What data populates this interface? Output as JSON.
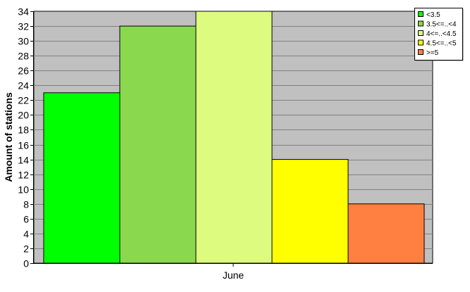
{
  "chart_data": {
    "type": "bar",
    "title": "",
    "xlabel": "",
    "ylabel": "Amount of stations",
    "categories": [
      "June"
    ],
    "series": [
      {
        "name": "<3.5",
        "values": [
          23
        ],
        "color": "#00ff00"
      },
      {
        "name": "3.5<=..<4",
        "values": [
          32
        ],
        "color": "#8ad84e"
      },
      {
        "name": "4<=..<4.5",
        "values": [
          34
        ],
        "color": "#ddfb7f"
      },
      {
        "name": "4.5<=..<5",
        "values": [
          14
        ],
        "color": "#ffff00"
      },
      {
        "name": ">=5",
        "values": [
          8
        ],
        "color": "#ff8040"
      }
    ],
    "ylim": [
      0,
      34
    ],
    "yticks": [
      0,
      2,
      4,
      6,
      8,
      10,
      12,
      14,
      16,
      18,
      20,
      22,
      24,
      26,
      28,
      30,
      32,
      34
    ],
    "grid": true,
    "legend": "top-right",
    "plot_background": "#c0c0c0"
  }
}
